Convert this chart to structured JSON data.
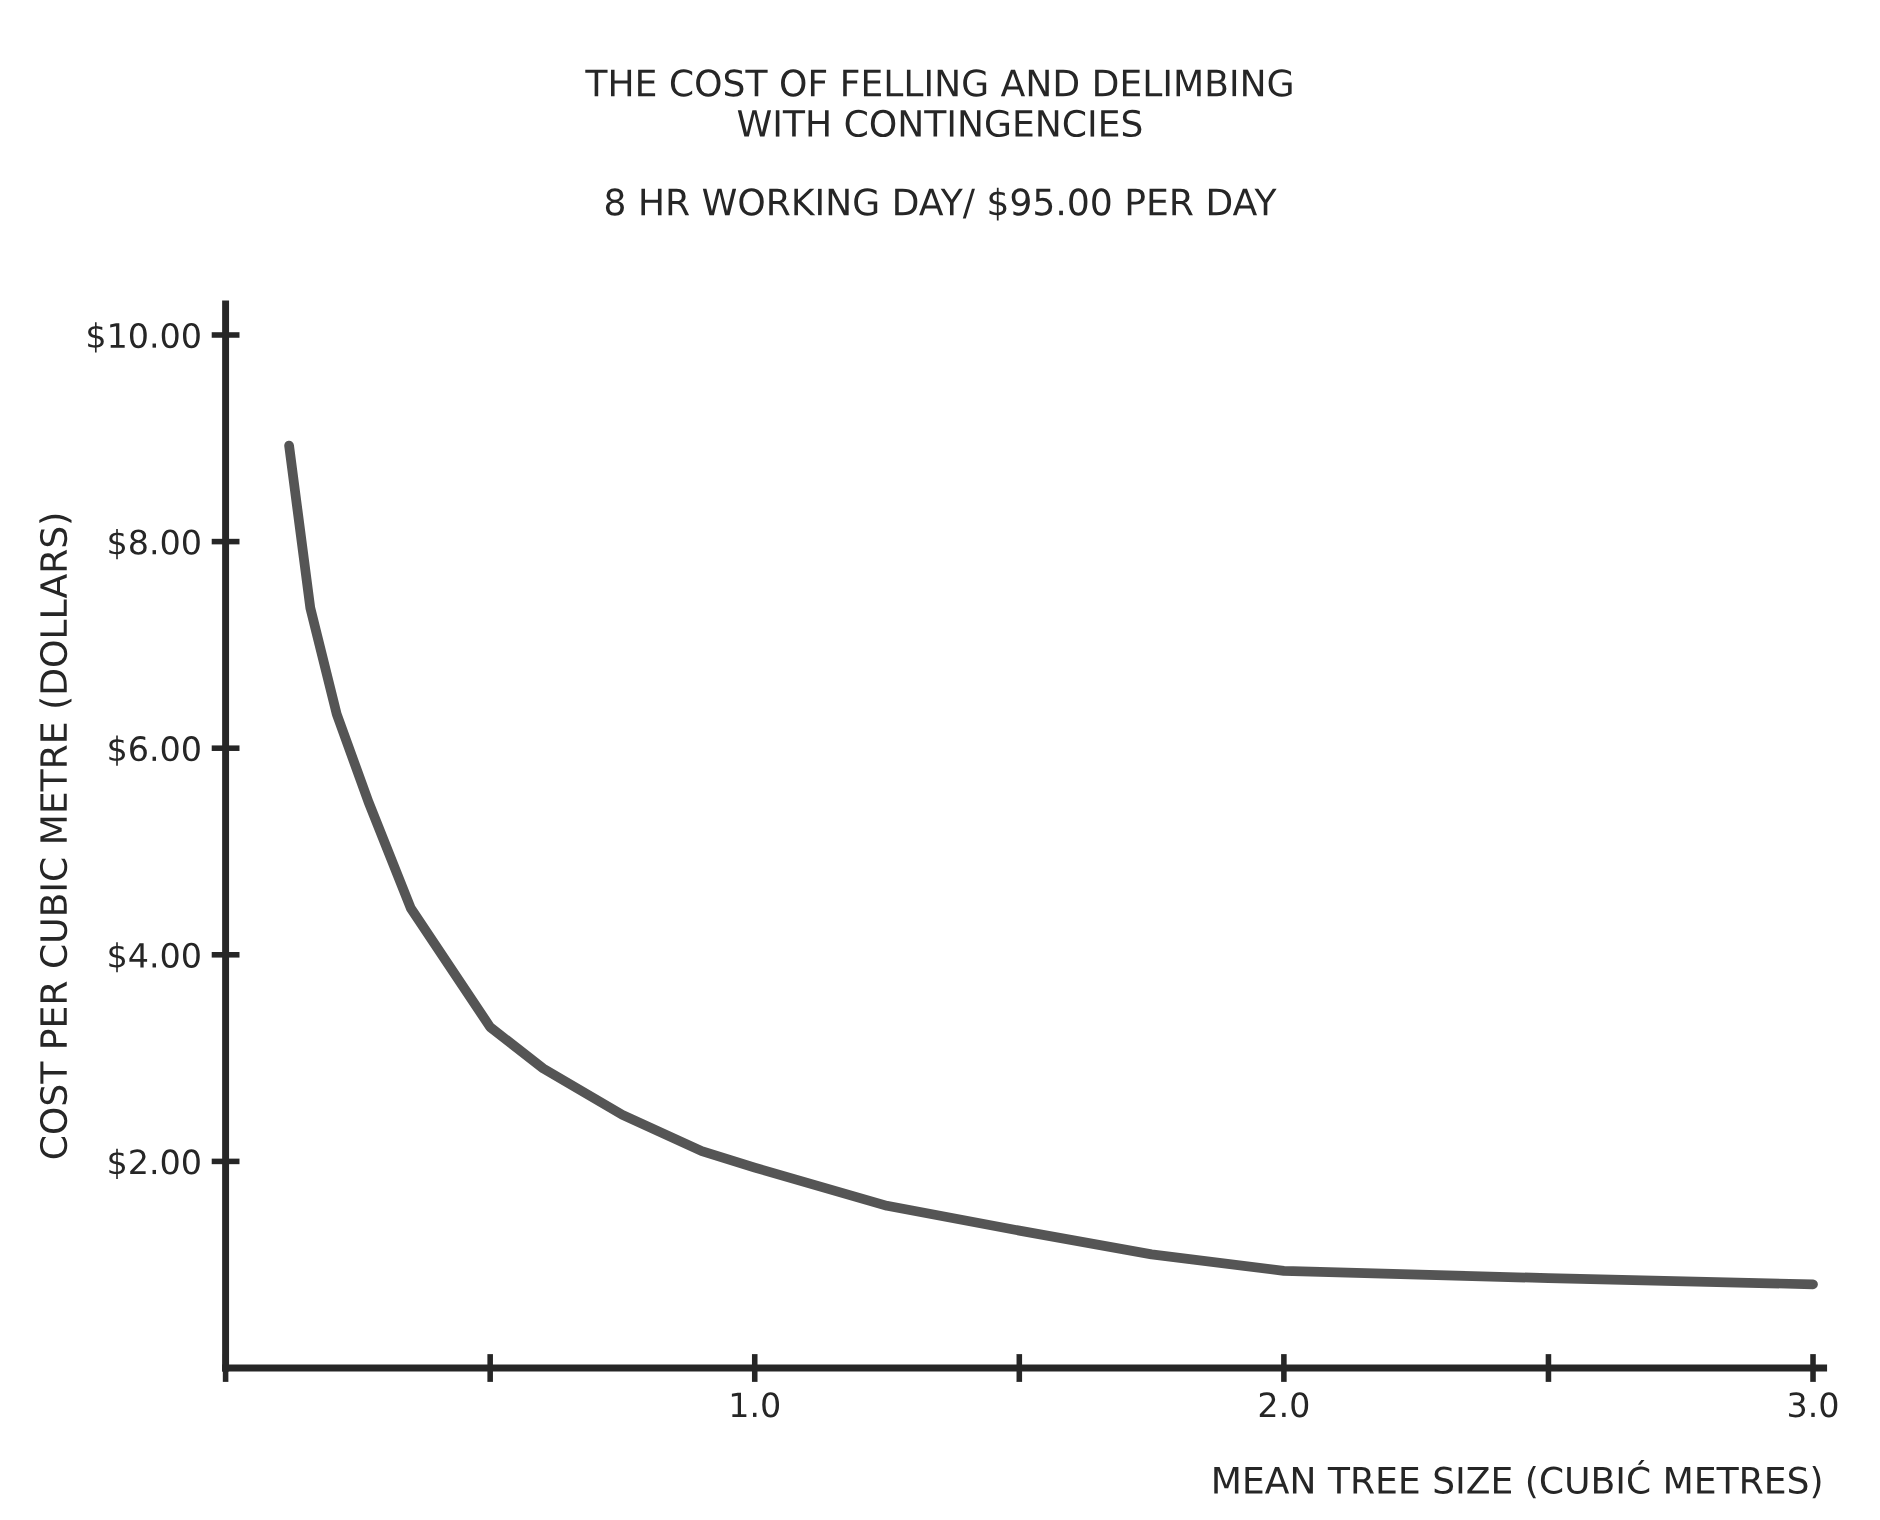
{
  "chart_data": {
    "type": "line",
    "title": "THE COST OF FELLING AND DELIMBING\nWITH CONTINGENCIES",
    "subtitle": "8 HR WORKING DAY/ $95.00 PER DAY",
    "xlabel": "MEAN TREE SIZE (CUBIĆ METRES)",
    "ylabel": "COST PER CUBIC METRE (DOLLARS)",
    "series": [
      {
        "color": "#555555",
        "x": [
          0.12,
          0.16,
          0.21,
          0.27,
          0.35,
          0.5,
          0.6,
          0.75,
          0.9,
          1.0,
          1.25,
          1.5,
          1.75,
          2.0,
          2.5,
          3.0
        ],
        "values": [
          8.93,
          7.36,
          6.33,
          5.48,
          4.45,
          3.3,
          2.9,
          2.45,
          2.1,
          1.94,
          1.57,
          1.33,
          1.1,
          0.94,
          0.87,
          0.81
        ]
      }
    ],
    "xlim": [
      0,
      3.02
    ],
    "ylim": [
      0,
      10.3
    ],
    "xticks": [
      {
        "value": 0,
        "label": null
      },
      {
        "value": 0.5,
        "label": null
      },
      {
        "value": 1.0,
        "label": "1.0"
      },
      {
        "value": 1.5,
        "label": null
      },
      {
        "value": 2.0,
        "label": "2.0"
      },
      {
        "value": 2.5,
        "label": null
      },
      {
        "value": 3.0,
        "label": "3.0"
      }
    ],
    "yticks": [
      {
        "value": 2,
        "label": "$2.00"
      },
      {
        "value": 4,
        "label": "$4.00"
      },
      {
        "value": 6,
        "label": "$6.00"
      },
      {
        "value": 8,
        "label": "$8.00"
      },
      {
        "value": 10,
        "label": "$10.00"
      }
    ],
    "grid": false,
    "marker": "none",
    "line_style": "solid"
  }
}
